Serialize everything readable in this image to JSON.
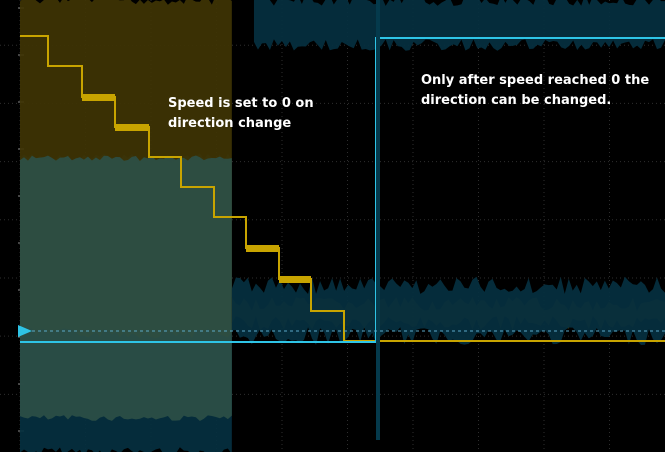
{
  "chart_data": {
    "type": "line",
    "title": "",
    "xlabel": "",
    "ylabel": "",
    "grid": true,
    "x_divisions": 10,
    "y_divisions": 8,
    "xlim": [
      -0.2,
      10
    ],
    "ylim": [
      0,
      8
    ],
    "trigger_level": 2.65,
    "series": [
      {
        "channel": 1,
        "color": "#c8a400",
        "band_color": "#3f3404",
        "noise_band": {
          "x": [
            -0.2,
            3.15
          ],
          "low": 2.1,
          "high": 8.0
        },
        "band_after": {
          "x": [
            3.15,
            10
          ],
          "low": 2.28,
          "high": 2.62
        },
        "steps": [
          {
            "x": [
              -0.2,
              0.18
            ],
            "y": 7.6
          },
          {
            "x": [
              0.18,
              1.0
            ],
            "y": 7.2
          },
          {
            "x": [
              1.0,
              2.0
            ],
            "y": 6.75
          },
          {
            "x": [
              2.0,
              3.0
            ],
            "y": 6.25
          },
          {
            "x": [
              3.0,
              4.0
            ],
            "y": 5.75
          },
          {
            "x": [
              4.0,
              5.0
            ],
            "y": 5.25
          },
          {
            "x": [
              5.0,
              6.0
            ],
            "y": 4.75
          },
          {
            "x": [
              6.0,
              7.0
            ],
            "y": 4.25
          },
          {
            "x": [
              7.0,
              8.0
            ],
            "y": 3.75
          },
          {
            "x": [
              8.0,
              9.0
            ],
            "y": 3.25
          },
          {
            "x": [
              9.0,
              10.0
            ],
            "y": 2.75
          },
          {
            "x": [
              10.0,
              11.0
            ],
            "y": 2.4
          },
          {
            "x": [
              11.0,
              20.0
            ],
            "y": 2.4
          }
        ]
      },
      {
        "channel": 2,
        "color": "#2ec4e6",
        "band_color": "#053040",
        "noise_band": {
          "x": [
            -0.2,
            3.15
          ],
          "low": 0.0,
          "high": 5.2
        },
        "band_after": {
          "x": [
            3.15,
            10
          ],
          "low": 2.05,
          "high": 2.95
        },
        "band_high": {
          "x": [
            3.5,
            10
          ],
          "low": 7.2,
          "high": 8.0
        },
        "trace": {
          "x": [
            -0.2,
            3.47,
            3.5,
            3.5,
            10
          ],
          "y": [
            2.4,
            2.4,
            2.4,
            7.6,
            7.6
          ]
        }
      }
    ],
    "annotations": [
      {
        "lines": [
          "Speed is set to 0 on",
          "direction change"
        ]
      },
      {
        "lines": [
          "Only after speed reached 0",
          "the direction can be changed."
        ]
      }
    ]
  },
  "annotations": {
    "left": "Speed is set to 0 on direction change",
    "right": "Only after speed reached 0 the direction can be changed."
  }
}
